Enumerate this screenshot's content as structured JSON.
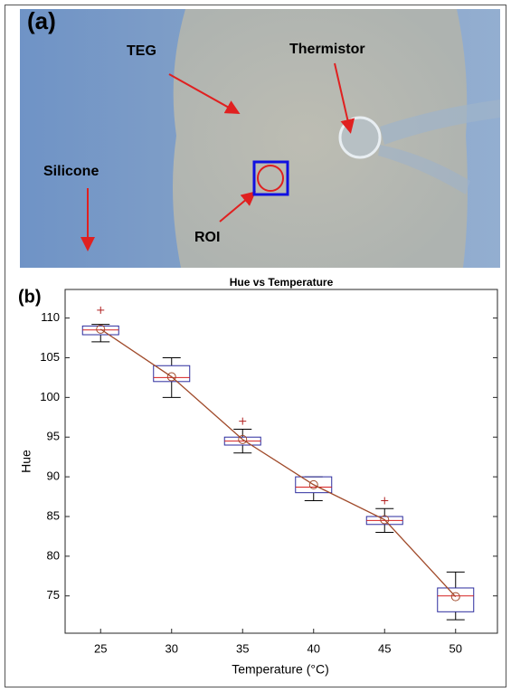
{
  "panel_a": {
    "label": "(a)",
    "annotations": [
      "TEG",
      "Thermistor",
      "Silicone",
      "ROI"
    ]
  },
  "chart_data": {
    "type": "box",
    "panel_label": "(b)",
    "title": "Hue vs Temperature",
    "x_label": "Temperature (°C)",
    "y_label": "Hue",
    "categories": [
      "25",
      "30",
      "35",
      "40",
      "45",
      "50"
    ],
    "whisker_low": [
      107,
      100,
      93,
      87,
      83,
      72
    ],
    "q1": [
      107.9,
      102,
      94,
      88,
      84,
      73
    ],
    "median": [
      108.5,
      102.5,
      94.5,
      88.7,
      84.5,
      75
    ],
    "q3": [
      109,
      104,
      95,
      90,
      85,
      76
    ],
    "whisker_high": [
      109.2,
      105,
      96,
      90,
      86,
      78
    ],
    "outliers": [
      [
        111
      ],
      [],
      [
        97
      ],
      [],
      [
        87
      ],
      []
    ],
    "means": [
      108.6,
      102.6,
      94.7,
      89,
      84.6,
      74.9
    ],
    "ylim": [
      70.3,
      113.6
    ],
    "yticks": [
      75,
      80,
      85,
      90,
      95,
      100,
      105,
      110
    ],
    "box_color": "#2b2b9e",
    "median_color": "#d62020",
    "whisker_color": "#000000",
    "outlier_color": "#b02020",
    "mean_color": "#a04a2a"
  }
}
